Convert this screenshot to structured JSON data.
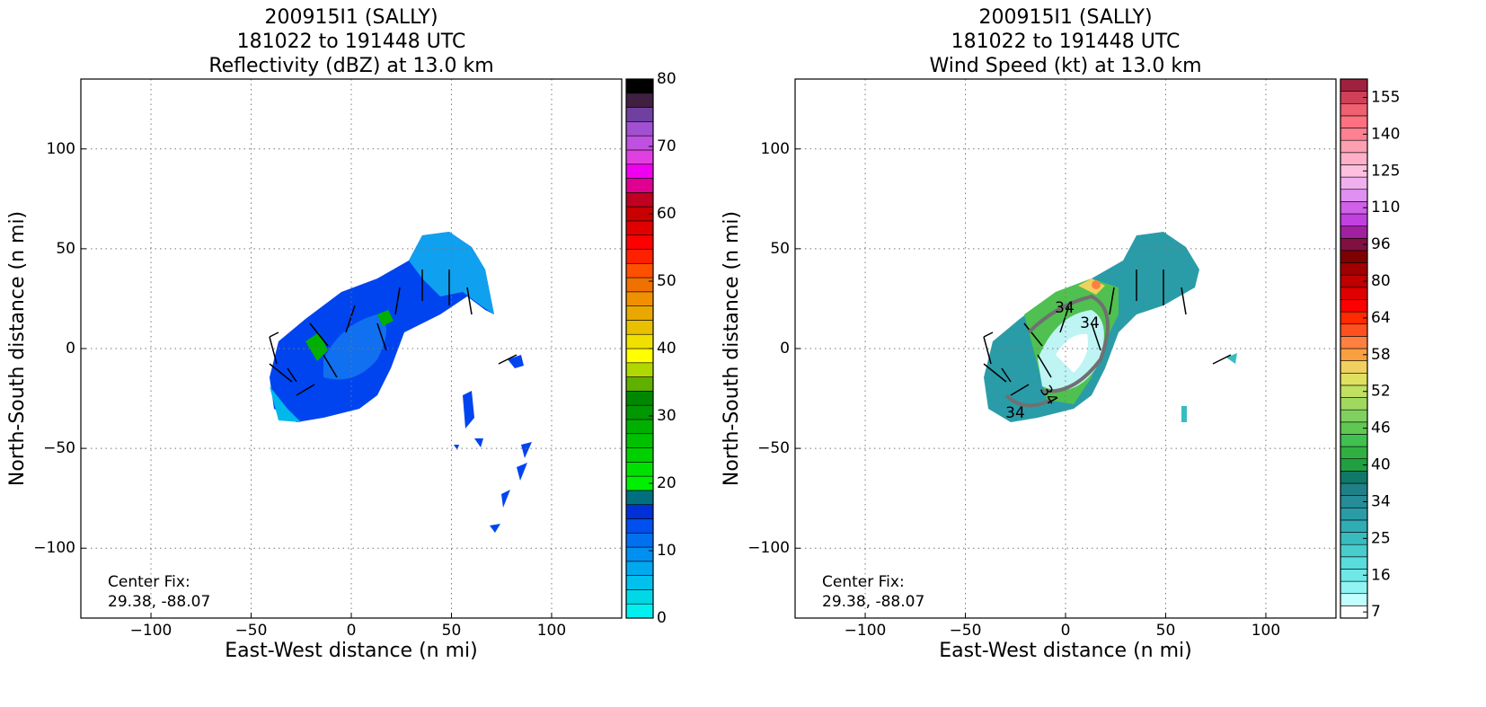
{
  "chart_data": [
    {
      "type": "field",
      "title": [
        "200915I1 (SALLY)",
        "181022 to 191448 UTC",
        "Reflectivity (dBZ) at 13.0 km"
      ],
      "xlabel": "East-West distance (n mi)",
      "ylabel": "North-South distance (n mi)",
      "xlim": [
        -135,
        135
      ],
      "ylim": [
        -135,
        135
      ],
      "xticks": [
        {
          "value": -100,
          "label": "−100"
        },
        {
          "value": -50,
          "label": "−50"
        },
        0,
        50,
        100
      ],
      "yticks": [
        {
          "value": -100,
          "label": "−100"
        },
        {
          "value": -50,
          "label": "−50"
        },
        0,
        50,
        100
      ],
      "grid": true,
      "annotations": [
        "Center Fix:",
        "29.38, -88.07"
      ],
      "colorbar": {
        "lim": [
          0,
          80
        ],
        "ticks": [
          0,
          10,
          20,
          30,
          40,
          50,
          60,
          70,
          80
        ],
        "colors": [
          "#00f0f0",
          "#00d8e8",
          "#00c0ec",
          "#00a8f0",
          "#0090f0",
          "#0070f0",
          "#0050f0",
          "#0030d8",
          "#007080",
          "#00f000",
          "#00e000",
          "#00d000",
          "#00c000",
          "#00b000",
          "#009800",
          "#008800",
          "#60b000",
          "#b0d800",
          "#ffff00",
          "#f0e000",
          "#e8c000",
          "#e8a800",
          "#f09000",
          "#f07000",
          "#ff5000",
          "#ff2000",
          "#ff0000",
          "#e00000",
          "#c80000",
          "#c00020",
          "#e00090",
          "#f000f0"
        ],
        "top_colors": [
          "#e040e0",
          "#c050e0",
          "#a050d0",
          "#7040a0",
          "#402040",
          "#000000"
        ]
      },
      "contour_labels": []
    },
    {
      "type": "field",
      "title": [
        "200915I1 (SALLY)",
        "181022 to 191448 UTC",
        "Wind Speed (kt) at 13.0 km"
      ],
      "xlabel": "East-West distance (n mi)",
      "ylabel": "North-South distance (n mi)",
      "xlim": [
        -135,
        135
      ],
      "ylim": [
        -135,
        135
      ],
      "xticks": [
        {
          "value": -100,
          "label": "−100"
        },
        {
          "value": -50,
          "label": "−50"
        },
        0,
        50,
        100
      ],
      "yticks": [
        {
          "value": -100,
          "label": "−100"
        },
        {
          "value": -50,
          "label": "−50"
        },
        0,
        50,
        100
      ],
      "grid": true,
      "annotations": [
        "Center Fix:",
        "29.38, -88.07"
      ],
      "colorbar": {
        "ticks": [
          7,
          16,
          25,
          34,
          40,
          46,
          52,
          58,
          64,
          80,
          96,
          110,
          125,
          140,
          155
        ],
        "colors": [
          "#ffffff",
          "#c0ffff",
          "#90f4f4",
          "#70e8e8",
          "#58dcdc",
          "#48cccc",
          "#38bcc0",
          "#30acb4",
          "#2a9ca8",
          "#268c98",
          "#208088",
          "#107868",
          "#20a040",
          "#30b040",
          "#40c050",
          "#60c850",
          "#80d060",
          "#a0d860",
          "#c0e060",
          "#e0e060",
          "#f0d060",
          "#f8a040",
          "#ff8040",
          "#ff5020",
          "#ff2a00",
          "#ff0000",
          "#e00000",
          "#c00000",
          "#a00000",
          "#800000",
          "#801040",
          "#a020a0",
          "#c040e0",
          "#d060e8",
          "#e090f0",
          "#f0b0f0",
          "#ffc0e0",
          "#ffb0c8",
          "#ffa0b0",
          "#ff8090",
          "#ff7080",
          "#f06070",
          "#d04058",
          "#a02040"
        ]
      },
      "contour_labels": [
        "34",
        "34",
        "34",
        "34"
      ]
    }
  ]
}
